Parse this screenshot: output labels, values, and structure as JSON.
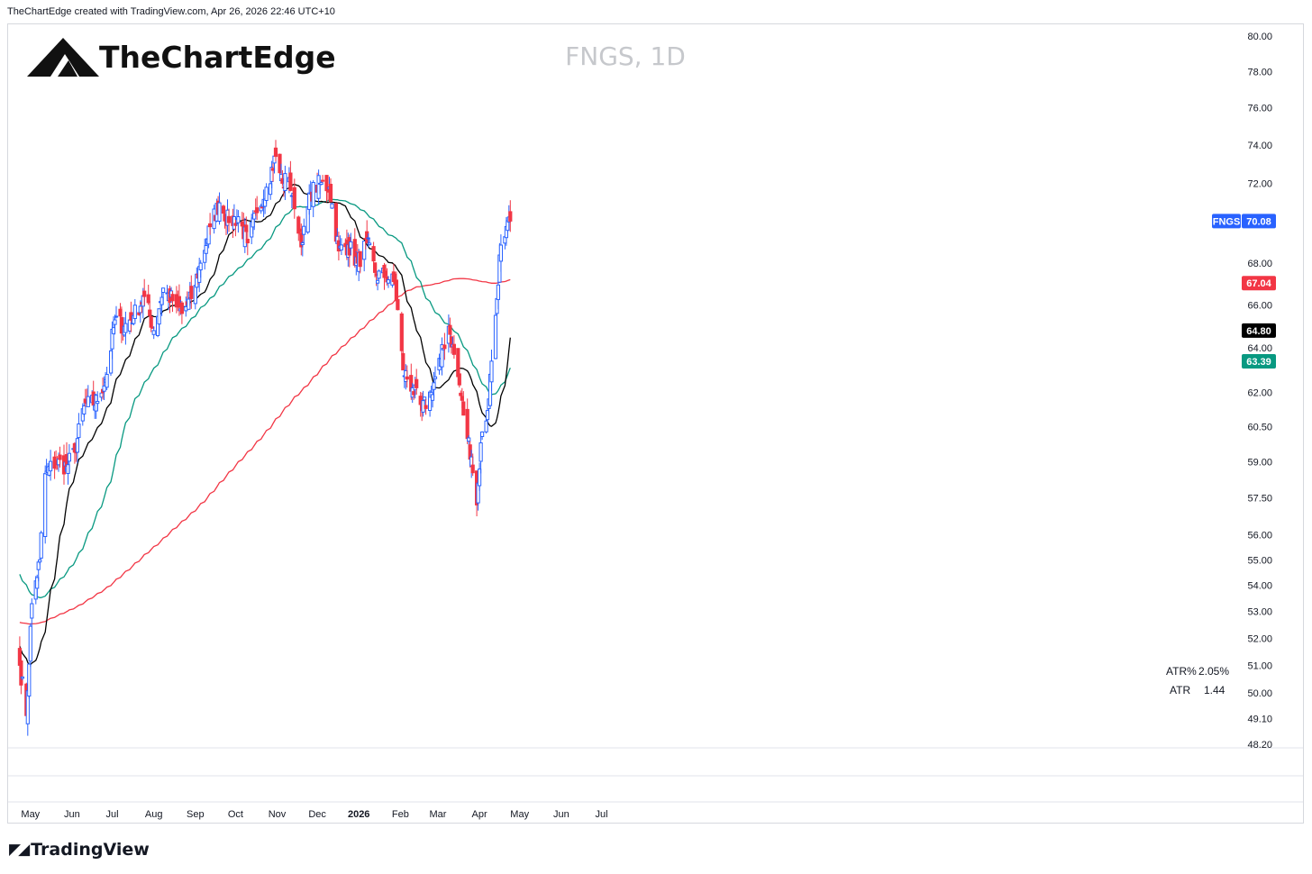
{
  "header_note": "TheChartEdge created with TradingView.com, Apr 26, 2026 22:46 UTC+10",
  "brand": {
    "name": "TheChartEdge",
    "icon": "mountain-logo-icon"
  },
  "footer": {
    "logo_text": "TradingView",
    "icon": "tradingview-icon"
  },
  "colors": {
    "up": "#2962ff",
    "down": "#f23645",
    "sma20": "#000000",
    "sma50": "#089981",
    "sma200": "#f23645"
  },
  "chart_data": {
    "type": "candlestick",
    "title": "FNGS, 1D",
    "symbol": "FNGS",
    "timeframe": "1D",
    "scale": "log",
    "ylim": [
      48.2,
      80.0
    ],
    "price_ticks": [
      "80.00",
      "78.00",
      "76.00",
      "74.00",
      "72.00",
      "68.00",
      "66.00",
      "64.00",
      "62.00",
      "60.50",
      "59.00",
      "57.50",
      "56.00",
      "55.00",
      "54.00",
      "53.00",
      "52.00",
      "51.00",
      "50.00",
      "49.10",
      "48.20"
    ],
    "time_ticks": [
      {
        "label": "May",
        "bold": false
      },
      {
        "label": "Jun",
        "bold": false
      },
      {
        "label": "Jul",
        "bold": false
      },
      {
        "label": "Aug",
        "bold": false
      },
      {
        "label": "Sep",
        "bold": false
      },
      {
        "label": "Oct",
        "bold": false
      },
      {
        "label": "Nov",
        "bold": false
      },
      {
        "label": "Dec",
        "bold": false
      },
      {
        "label": "2026",
        "bold": true
      },
      {
        "label": "Feb",
        "bold": false
      },
      {
        "label": "Mar",
        "bold": false
      },
      {
        "label": "Apr",
        "bold": false
      },
      {
        "label": "May",
        "bold": false
      },
      {
        "label": "Jun",
        "bold": false
      },
      {
        "label": "Jul",
        "bold": false
      }
    ],
    "close_anchors": [
      [
        "2025-04-23",
        51.0
      ],
      [
        "2025-04-28",
        49.2
      ],
      [
        "2025-05-02",
        53.3
      ],
      [
        "2025-05-08",
        55.0
      ],
      [
        "2025-05-12",
        58.5
      ],
      [
        "2025-05-20",
        59.0
      ],
      [
        "2025-05-28",
        58.8
      ],
      [
        "2025-06-03",
        59.4
      ],
      [
        "2025-06-10",
        61.4
      ],
      [
        "2025-06-20",
        61.6
      ],
      [
        "2025-06-27",
        62.8
      ],
      [
        "2025-07-03",
        65.3
      ],
      [
        "2025-07-10",
        65.0
      ],
      [
        "2025-07-17",
        65.5
      ],
      [
        "2025-07-25",
        66.4
      ],
      [
        "2025-08-01",
        64.8
      ],
      [
        "2025-08-08",
        66.8
      ],
      [
        "2025-08-15",
        66.2
      ],
      [
        "2025-08-22",
        65.6
      ],
      [
        "2025-08-29",
        66.3
      ],
      [
        "2025-09-05",
        68.0
      ],
      [
        "2025-09-12",
        69.8
      ],
      [
        "2025-09-19",
        71.0
      ],
      [
        "2025-09-26",
        70.0
      ],
      [
        "2025-10-03",
        70.3
      ],
      [
        "2025-10-10",
        69.0
      ],
      [
        "2025-10-17",
        70.5
      ],
      [
        "2025-10-24",
        71.8
      ],
      [
        "2025-10-31",
        73.4
      ],
      [
        "2025-11-05",
        72.0
      ],
      [
        "2025-11-10",
        72.3
      ],
      [
        "2025-11-14",
        70.7
      ],
      [
        "2025-11-20",
        69.0
      ],
      [
        "2025-11-26",
        71.5
      ],
      [
        "2025-12-03",
        72.0
      ],
      [
        "2025-12-10",
        71.8
      ],
      [
        "2025-12-17",
        68.6
      ],
      [
        "2025-12-24",
        68.9
      ],
      [
        "2025-12-31",
        68.0
      ],
      [
        "2026-01-07",
        69.0
      ],
      [
        "2026-01-14",
        67.4
      ],
      [
        "2026-01-21",
        67.4
      ],
      [
        "2026-01-28",
        67.0
      ],
      [
        "2026-02-03",
        63.0
      ],
      [
        "2026-02-10",
        62.2
      ],
      [
        "2026-02-17",
        61.2
      ],
      [
        "2026-02-24",
        62.0
      ],
      [
        "2026-03-03",
        63.5
      ],
      [
        "2026-03-09",
        65.0
      ],
      [
        "2026-03-16",
        62.7
      ],
      [
        "2026-03-20",
        61.0
      ],
      [
        "2026-03-26",
        59.2
      ],
      [
        "2026-03-30",
        57.2
      ],
      [
        "2026-04-02",
        59.8
      ],
      [
        "2026-04-07",
        61.2
      ],
      [
        "2026-04-10",
        63.4
      ],
      [
        "2026-04-14",
        66.3
      ],
      [
        "2026-04-16",
        68.4
      ],
      [
        "2026-04-20",
        69.3
      ],
      [
        "2026-04-24",
        70.08
      ]
    ],
    "last_price": "70.08",
    "indicators": [
      {
        "name": "SMA 200",
        "color": "#f23645",
        "label": "67.04",
        "value": 67.04
      },
      {
        "name": "SMA 20",
        "color": "#000000",
        "label": "64.80",
        "value": 64.8
      },
      {
        "name": "SMA 50",
        "color": "#089981",
        "label": "63.39",
        "value": 63.39
      }
    ],
    "stats": [
      {
        "label": "ATR%",
        "value": "2.05%"
      },
      {
        "label": "ATR",
        "value": "1.44"
      }
    ]
  }
}
